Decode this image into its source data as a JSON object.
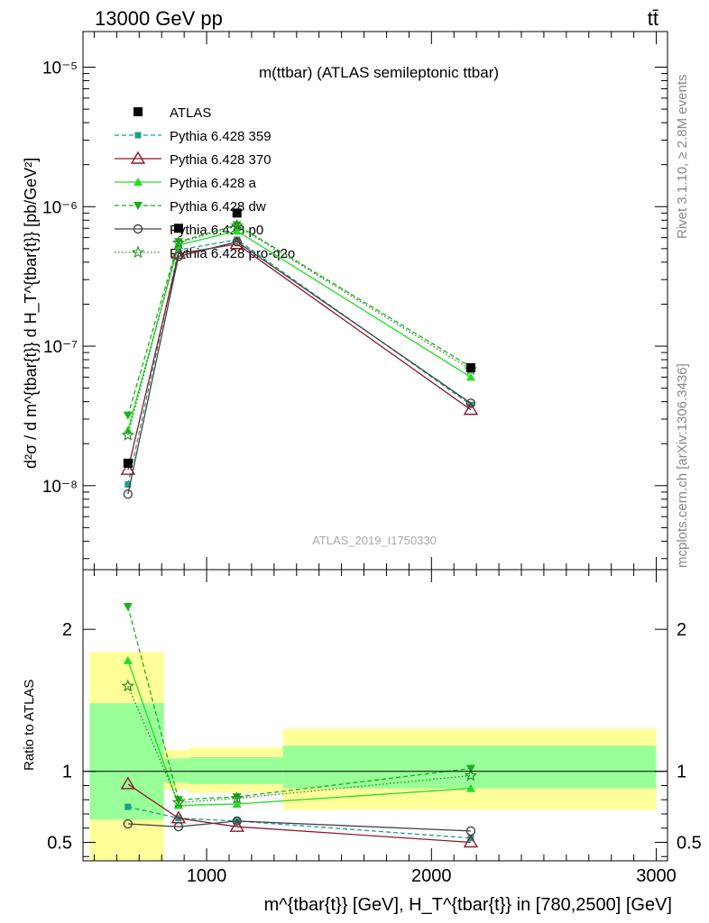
{
  "header": {
    "left": "13000 GeV pp",
    "right": "tt̄"
  },
  "side_labels": {
    "rivet": "Rivet 3.1.10, ≥ 2.8M events",
    "mcplots": "mcplots.cern.ch [arXiv:1306.3436]"
  },
  "colors": {
    "atlas": "#000000",
    "p359": "#1aa08a",
    "p370": "#8b1a2a",
    "pa": "#22dd22",
    "pdw": "#19b019",
    "pp0": "#444444",
    "pq2o": "#1f8a1f",
    "band_outer": "#ffff99",
    "band_inner": "#99ff99"
  },
  "chart_data": [
    {
      "type": "line",
      "title": "m(ttbar) (ATLAS semileptonic ttbar)",
      "watermark": "ATLAS_2019_I1750330",
      "ylabel": "d²σ / d m^{tbar{t}} d H_T^{tbar{t}} [pb/GeV²]",
      "yscale": "log",
      "ylim": [
        2.5e-09,
        1.8e-05
      ],
      "xlim": [
        450,
        3050
      ],
      "y_tick_labels": [
        "10⁻⁸",
        "10⁻⁷",
        "10⁻⁶",
        "10⁻⁵"
      ],
      "legend_position": "top-left",
      "x": [
        650,
        875,
        1135,
        2175
      ],
      "series": [
        {
          "name": "ATLAS",
          "key": "atlas",
          "style": "data",
          "values": [
            1.45e-08,
            7e-07,
            9e-07,
            7e-08
          ]
        },
        {
          "name": "Pythia 6.428 359",
          "key": "p359",
          "style": "dashed",
          "marker": "square",
          "values": [
            1.02e-08,
            4.9e-07,
            5.8e-07,
            3.8e-08
          ]
        },
        {
          "name": "Pythia 6.428 370",
          "key": "p370",
          "style": "solid",
          "marker": "open-triangle",
          "values": [
            1.3e-08,
            4.6e-07,
            5.4e-07,
            3.5e-08
          ]
        },
        {
          "name": "Pythia 6.428 a",
          "key": "pa",
          "style": "solid",
          "marker": "triangle-up",
          "values": [
            2.5e-08,
            5.3e-07,
            6.7e-07,
            6e-08
          ]
        },
        {
          "name": "Pythia 6.428 dw",
          "key": "pdw",
          "style": "dashed",
          "marker": "triangle-down",
          "values": [
            3.2e-08,
            5.6e-07,
            7.4e-07,
            7.1e-08
          ]
        },
        {
          "name": "Pythia 6.428 p0",
          "key": "pp0",
          "style": "solid",
          "marker": "open-circle",
          "values": [
            8.7e-09,
            4.4e-07,
            5.6e-07,
            3.9e-08
          ]
        },
        {
          "name": "Pythia 6.428 pro-q2o",
          "key": "pq2o",
          "style": "dotted",
          "marker": "open-star",
          "values": [
            2.3e-08,
            5.5e-07,
            7.3e-07,
            6.8e-08
          ]
        }
      ]
    },
    {
      "type": "line",
      "ylabel": "Ratio to ATLAS",
      "xlabel": "m^{tbar{t}} [GeV], H_T^{tbar{t}} in [780,2500] [GeV]",
      "xlim": [
        450,
        3050
      ],
      "ylim": [
        0.37,
        2.42
      ],
      "x_ticks": [
        1000,
        2000,
        3000
      ],
      "x_tick_labels": [
        "1000",
        "2000",
        "3000"
      ],
      "y_ticks": [
        0.5,
        1,
        2
      ],
      "y_tick_labels": [
        "0.5",
        "1",
        "2"
      ],
      "bands": [
        {
          "x0": 480,
          "x1": 810,
          "outer": [
            0.35,
            1.84
          ],
          "inner": [
            0.66,
            1.48
          ]
        },
        {
          "x0": 810,
          "x1": 920,
          "outer": [
            0.87,
            1.15
          ],
          "inner": [
            0.92,
            1.09
          ]
        },
        {
          "x0": 920,
          "x1": 1340,
          "outer": [
            0.85,
            1.17
          ],
          "inner": [
            0.91,
            1.1
          ]
        },
        {
          "x0": 1340,
          "x1": 3000,
          "outer": [
            0.73,
            1.3
          ],
          "inner": [
            0.88,
            1.18
          ]
        }
      ],
      "x": [
        650,
        875,
        1135,
        2175
      ],
      "series": [
        {
          "name": "Pythia 6.428 359",
          "key": "p359",
          "style": "dashed",
          "marker": "square",
          "values": [
            0.75,
            0.67,
            0.65,
            0.53
          ]
        },
        {
          "name": "Pythia 6.428 370",
          "key": "p370",
          "style": "solid",
          "marker": "open-triangle",
          "values": [
            0.91,
            0.67,
            0.61,
            0.5
          ]
        },
        {
          "name": "Pythia 6.428 a",
          "key": "pa",
          "style": "solid",
          "marker": "triangle-up",
          "values": [
            1.78,
            0.76,
            0.77,
            0.88
          ]
        },
        {
          "name": "Pythia 6.428 dw",
          "key": "pdw",
          "style": "dashed",
          "marker": "triangle-down",
          "values": [
            2.16,
            0.8,
            0.82,
            1.02
          ]
        },
        {
          "name": "Pythia 6.428 p0",
          "key": "pp0",
          "style": "solid",
          "marker": "open-circle",
          "values": [
            0.63,
            0.61,
            0.65,
            0.58
          ]
        },
        {
          "name": "Pythia 6.428 pro-q2o",
          "key": "pq2o",
          "style": "dotted",
          "marker": "open-star",
          "values": [
            1.6,
            0.78,
            0.81,
            0.97
          ]
        }
      ]
    }
  ]
}
